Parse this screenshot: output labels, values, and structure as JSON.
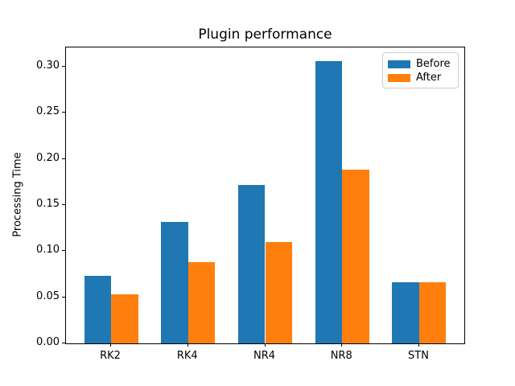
{
  "figure_title": "Plugin performance",
  "chart_data": {
    "type": "bar",
    "title": "Plugin performance",
    "xlabel": "",
    "ylabel": "Processing Time",
    "categories": [
      "RK2",
      "RK4",
      "NR4",
      "NR8",
      "STN"
    ],
    "series": [
      {
        "name": "Before",
        "color": "#1f77b4",
        "values": [
          0.073,
          0.132,
          0.172,
          0.306,
          0.066
        ]
      },
      {
        "name": "After",
        "color": "#ff7f0e",
        "values": [
          0.053,
          0.088,
          0.11,
          0.188,
          0.066
        ]
      }
    ],
    "ylim": [
      0,
      0.321
    ],
    "yticks": [
      0.0,
      0.05,
      0.1,
      0.15,
      0.2,
      0.25,
      0.3
    ],
    "ytick_label_format": "2dp",
    "xlim": [
      -0.585,
      4.585
    ],
    "bar_width": 0.35,
    "grid": false,
    "legend_position": "upper right",
    "legend_labels": [
      "Before",
      "After"
    ],
    "background_color": "#ffffff",
    "axis_color": "#000000"
  }
}
